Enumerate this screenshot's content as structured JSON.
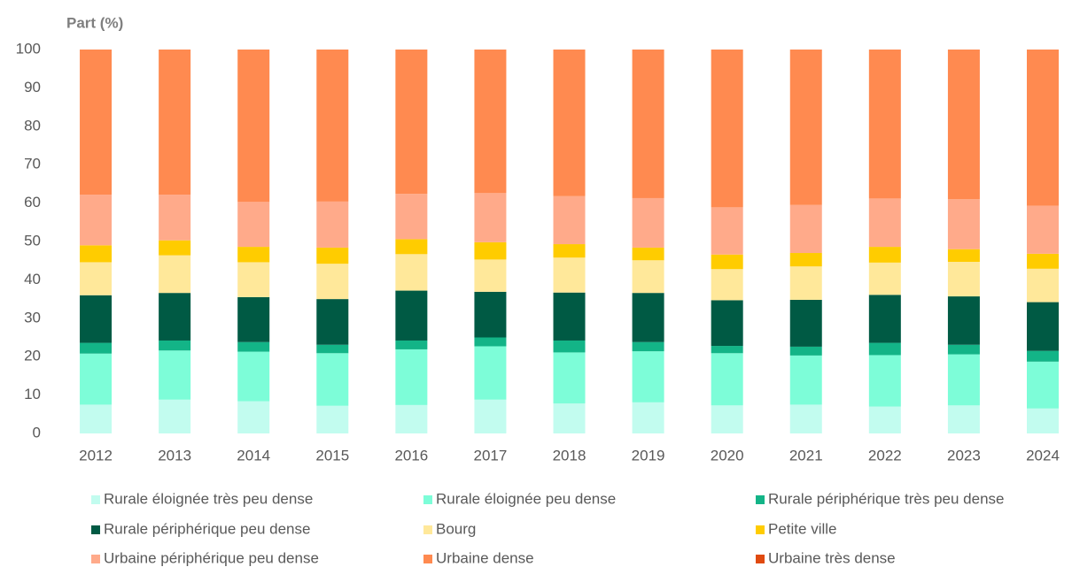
{
  "chart_data": {
    "type": "stacked_bar",
    "y_axis_label": "Part (%)",
    "categories": [
      "2012",
      "2013",
      "2014",
      "2015",
      "2016",
      "2017",
      "2018",
      "2019",
      "2020",
      "2021",
      "2022",
      "2023",
      "2024"
    ],
    "ylim": [
      0,
      100
    ],
    "yticks": [
      0,
      10,
      20,
      30,
      40,
      50,
      60,
      70,
      80,
      90,
      100
    ],
    "grid": false,
    "series": [
      {
        "name": "Rurale éloignée très peu dense",
        "color": "#c2fcef",
        "values": [
          7.5,
          8.8,
          8.4,
          7.2,
          7.4,
          8.8,
          7.8,
          8.1,
          7.3,
          7.5,
          7.0,
          7.3,
          6.5
        ]
      },
      {
        "name": "Rurale éloignée peu dense",
        "color": "#7dfdd8",
        "values": [
          13.3,
          12.8,
          12.9,
          13.7,
          14.5,
          13.9,
          13.3,
          13.3,
          13.6,
          12.8,
          13.4,
          13.3,
          12.2
        ]
      },
      {
        "name": "Rurale périphérique très peu dense",
        "color": "#13b487",
        "values": [
          2.8,
          2.6,
          2.5,
          2.2,
          2.3,
          2.3,
          3.1,
          2.4,
          1.9,
          2.3,
          3.2,
          2.5,
          2.8
        ]
      },
      {
        "name": "Rurale périphérique peu dense",
        "color": "#005a44",
        "values": [
          12.4,
          12.4,
          11.7,
          11.9,
          13.0,
          11.9,
          12.5,
          12.8,
          11.9,
          12.2,
          12.5,
          12.6,
          12.7
        ]
      },
      {
        "name": "Bourg",
        "color": "#ffe89a",
        "values": [
          8.6,
          9.8,
          9.1,
          9.2,
          9.5,
          8.4,
          9.1,
          8.5,
          8.1,
          8.7,
          8.4,
          9.0,
          8.7
        ]
      },
      {
        "name": "Petite ville",
        "color": "#ffcc00",
        "values": [
          4.4,
          3.9,
          4.0,
          4.2,
          3.9,
          4.5,
          3.5,
          3.3,
          3.8,
          3.5,
          4.1,
          3.3,
          3.9
        ]
      },
      {
        "name": "Urbaine périphérique peu dense",
        "color": "#ffaa8a",
        "values": [
          13.2,
          11.9,
          11.7,
          12.0,
          11.8,
          12.8,
          12.5,
          12.9,
          12.3,
          12.5,
          12.6,
          13.0,
          12.5
        ]
      },
      {
        "name": "Urbaine dense",
        "color": "#ff8a50",
        "values": [
          37.8,
          37.8,
          39.7,
          39.6,
          37.6,
          37.4,
          38.2,
          38.7,
          41.1,
          40.5,
          38.8,
          39.0,
          40.7
        ]
      },
      {
        "name": "Urbaine très dense",
        "color": "#e04a10",
        "values": [
          0,
          0,
          0,
          0,
          0,
          0,
          0,
          0,
          0,
          0,
          0,
          0,
          0
        ]
      }
    ]
  }
}
